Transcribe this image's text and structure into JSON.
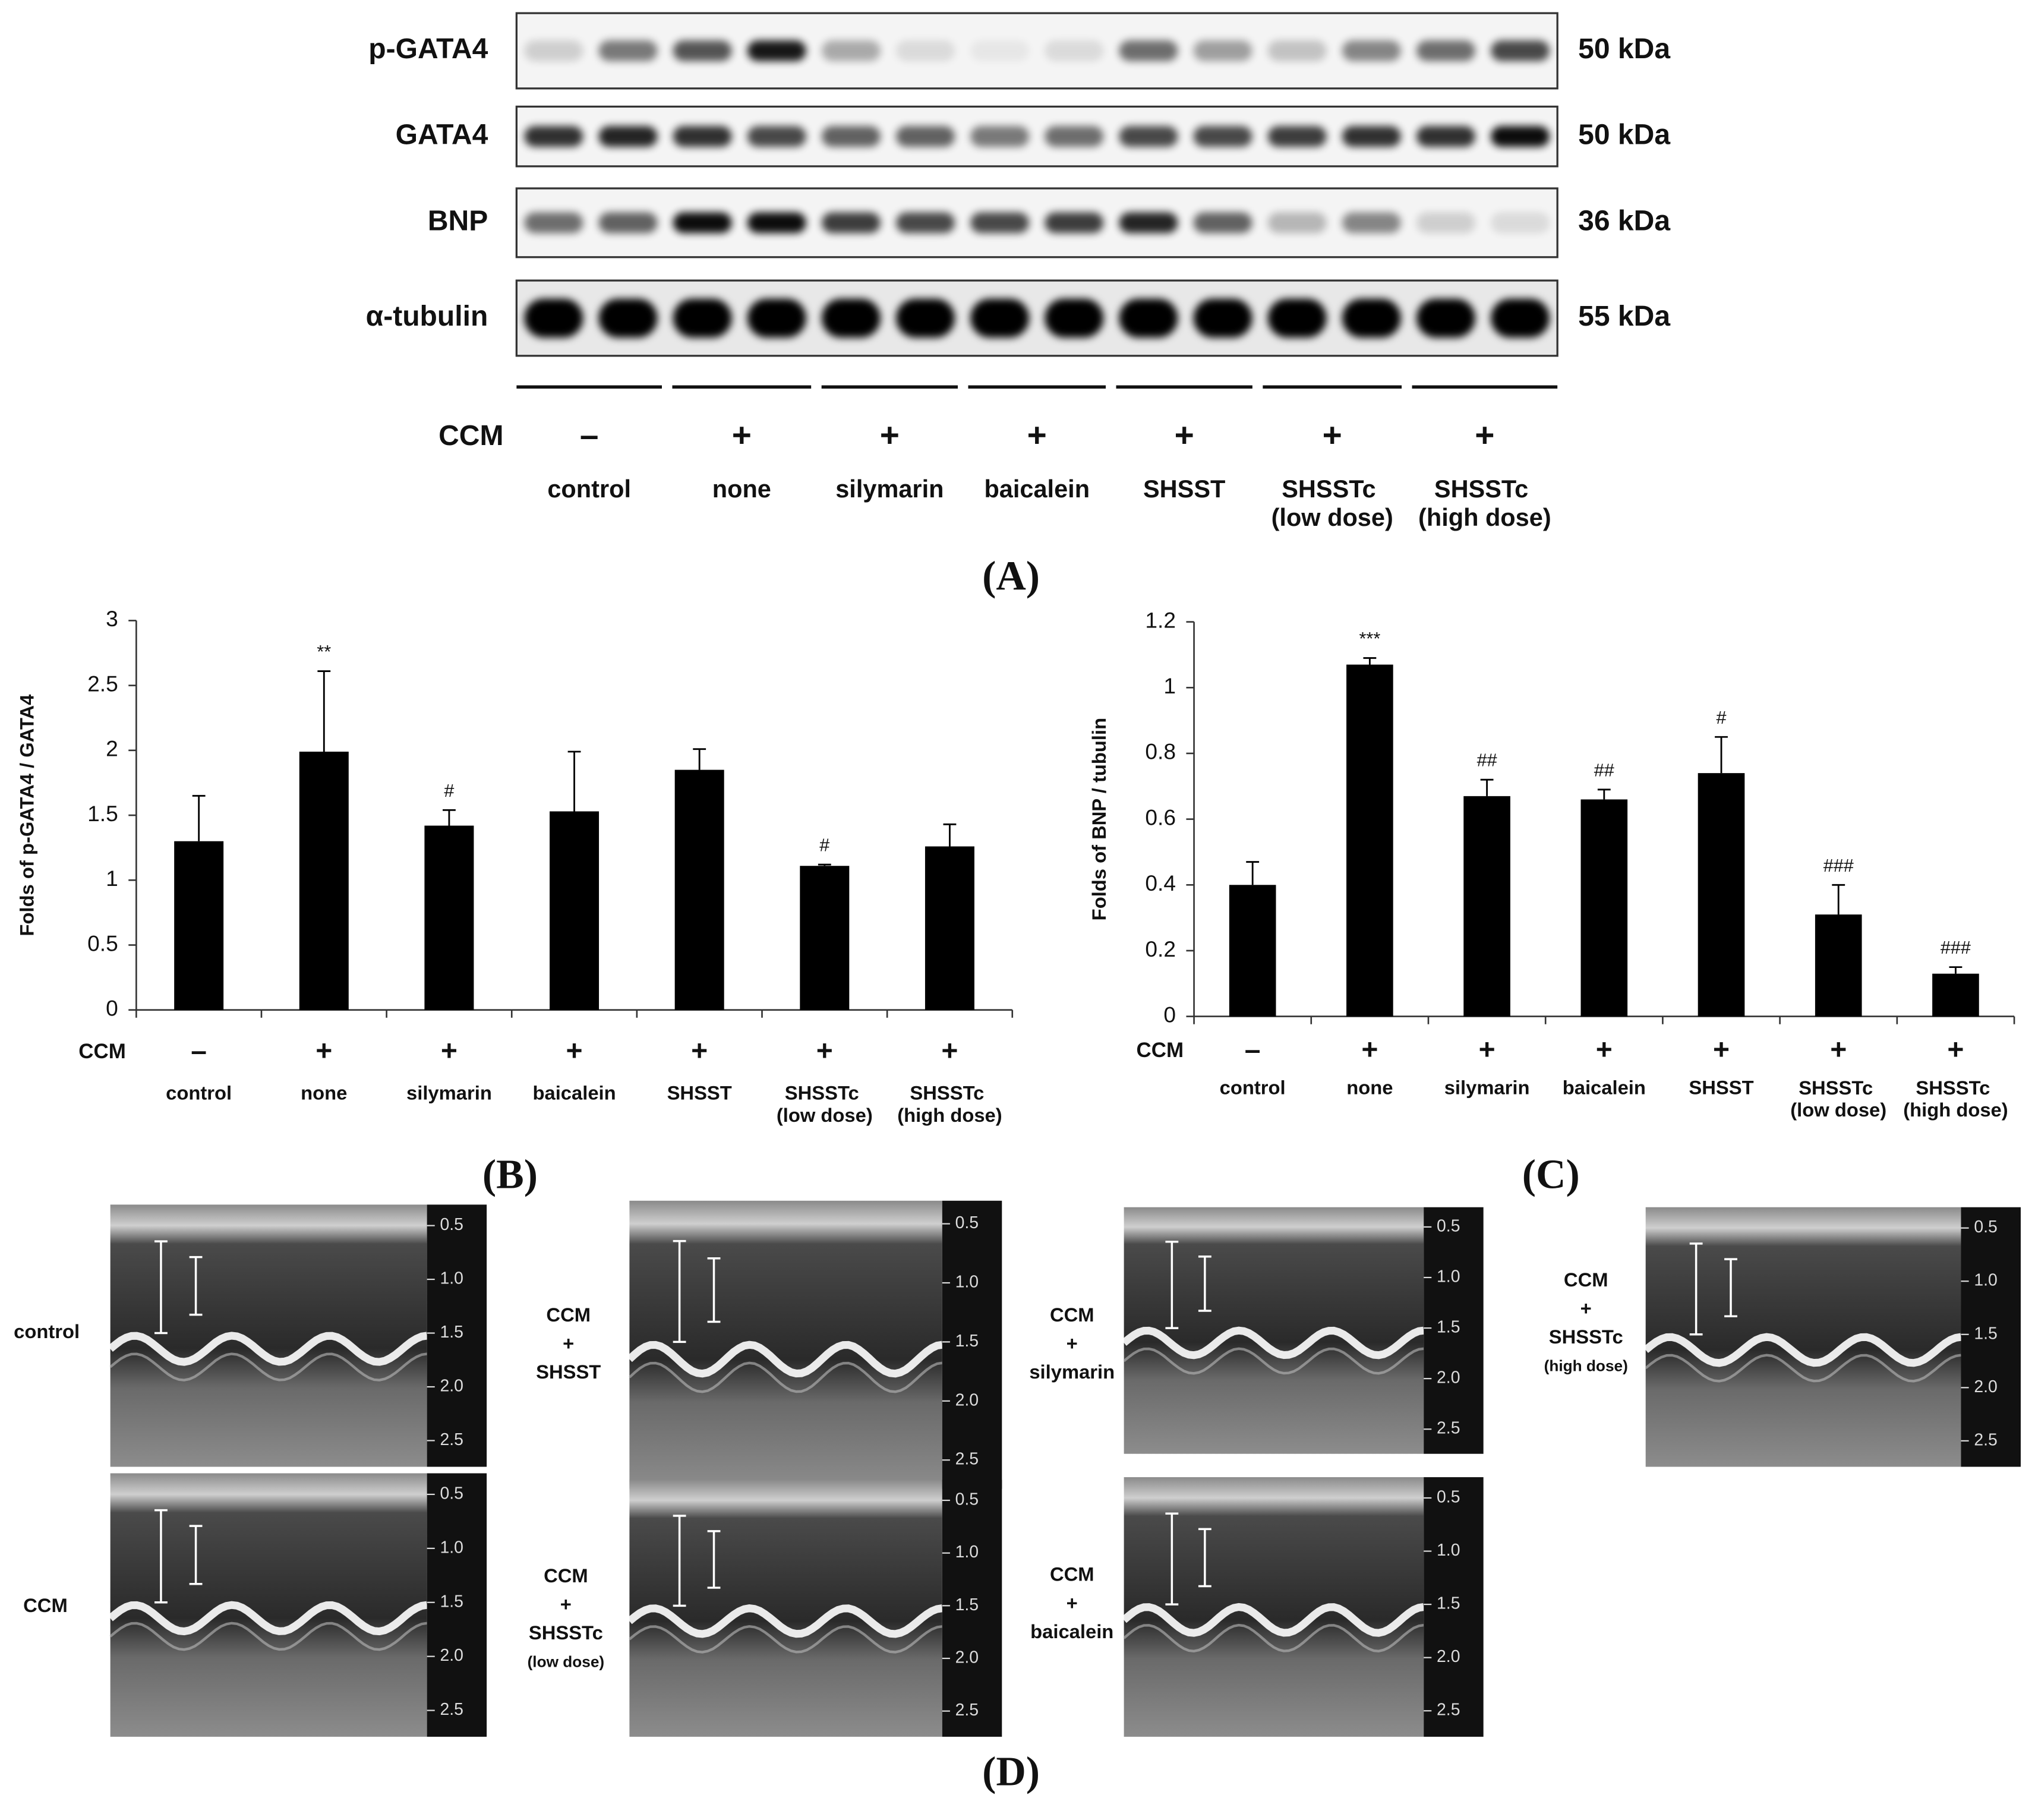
{
  "panel_a": {
    "label": "(A)",
    "rows": [
      {
        "protein": "p-GATA4",
        "size": "50 kDa"
      },
      {
        "protein": "GATA4",
        "size": "50 kDa"
      },
      {
        "protein": "BNP",
        "size": "36 kDa"
      },
      {
        "protein": "α-tubulin",
        "size": "55 kDa"
      }
    ],
    "ccm_label": "CCM",
    "ccm": [
      "–",
      "+",
      "+",
      "+",
      "+",
      "+",
      "+"
    ],
    "groups": [
      "control",
      "none",
      "silymarin",
      "baicalein",
      "SHSST",
      "SHSSTc (low dose)",
      "SHSSTc (high dose)"
    ]
  },
  "chart_data": [
    {
      "type": "bar",
      "panel_label": "(B)",
      "y_label": "Folds of p-GATA4 / GATA4",
      "categories": [
        "control",
        "none",
        "silymarin",
        "baicalein",
        "SHSST",
        "SHSSTc (low dose)",
        "SHSSTc (high dose)"
      ],
      "ccm_label": "CCM",
      "ccm": [
        "–",
        "+",
        "+",
        "+",
        "+",
        "+",
        "+"
      ],
      "values": [
        1.3,
        1.99,
        1.42,
        1.53,
        1.85,
        1.11,
        1.26
      ],
      "errors": [
        0.35,
        0.62,
        0.12,
        0.46,
        0.16,
        0.01,
        0.17
      ],
      "annotations": [
        null,
        "**",
        "#",
        null,
        null,
        "#",
        null
      ],
      "color": "#000000",
      "ylim": [
        0,
        3
      ],
      "yticks": [
        0,
        0.5,
        1,
        1.5,
        2,
        2.5,
        3
      ]
    },
    {
      "type": "bar",
      "panel_label": "(C)",
      "y_label": "Folds of BNP / tubulin",
      "categories": [
        "control",
        "none",
        "silymarin",
        "baicalein",
        "SHSST",
        "SHSSTc (low dose)",
        "SHSSTc (high dose)"
      ],
      "ccm_label": "CCM",
      "ccm": [
        "–",
        "+",
        "+",
        "+",
        "+",
        "+",
        "+"
      ],
      "values": [
        0.4,
        1.07,
        0.67,
        0.66,
        0.74,
        0.31,
        0.13
      ],
      "errors": [
        0.07,
        0.02,
        0.05,
        0.03,
        0.11,
        0.09,
        0.02
      ],
      "annotations": [
        null,
        "***",
        "##",
        "##",
        "#",
        "###",
        "###"
      ],
      "color": "#000000",
      "ylim": [
        0,
        1.2
      ],
      "yticks": [
        0,
        0.2,
        0.4,
        0.6,
        0.8,
        1,
        1.2
      ]
    }
  ],
  "panel_d": {
    "label": "(D)",
    "depth_ticks": [
      "0.5",
      "1.0",
      "1.5",
      "2.0",
      "2.5"
    ],
    "images": [
      {
        "label": [
          "control"
        ]
      },
      {
        "label": [
          "CCM",
          "+",
          "SHSST"
        ]
      },
      {
        "label": [
          "CCM",
          "+",
          "silymarin"
        ]
      },
      {
        "label": [
          "CCM",
          "+",
          "SHSSTc",
          "(high dose)"
        ]
      },
      {
        "label": [
          "CCM"
        ]
      },
      {
        "label": [
          "CCM",
          "+",
          "SHSSTc",
          "(low dose)"
        ]
      },
      {
        "label": [
          "CCM",
          "+",
          "baicalein"
        ]
      }
    ]
  }
}
